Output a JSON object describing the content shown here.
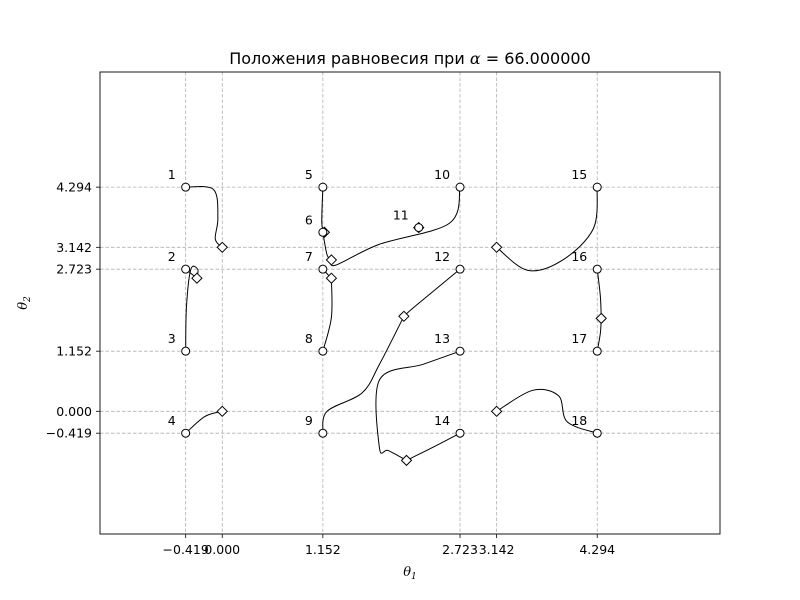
{
  "chart_data": {
    "type": "scatter",
    "title_prefix": "Положения равновесия при ",
    "title_symbol": "α",
    "title_suffix": " = 66.000000",
    "xlabel_main": "θ",
    "xlabel_sub": "1",
    "ylabel_main": "θ",
    "ylabel_sub": "2",
    "xlim": [
      -1.4,
      5.7
    ],
    "ylim": [
      -2.35,
      6.5
    ],
    "x_ticks": [
      {
        "value": -0.419,
        "label": "−0.419"
      },
      {
        "value": 0.0,
        "label": "0.000"
      },
      {
        "value": 1.152,
        "label": "1.152"
      },
      {
        "value": 2.723,
        "label": "2.723"
      },
      {
        "value": 3.142,
        "label": "3.142"
      },
      {
        "value": 4.294,
        "label": "4.294"
      }
    ],
    "y_ticks": [
      {
        "value": -0.419,
        "label": "−0.419"
      },
      {
        "value": 0.0,
        "label": "0.000"
      },
      {
        "value": 1.152,
        "label": "1.152"
      },
      {
        "value": 2.723,
        "label": "2.723"
      },
      {
        "value": 3.142,
        "label": "3.142"
      },
      {
        "value": 4.294,
        "label": "4.294"
      }
    ],
    "grid": true,
    "start_points": [
      {
        "label": "1",
        "x": -0.419,
        "y": 4.294
      },
      {
        "label": "2",
        "x": -0.419,
        "y": 2.723
      },
      {
        "label": "3",
        "x": -0.419,
        "y": 1.152
      },
      {
        "label": "4",
        "x": -0.419,
        "y": -0.419
      },
      {
        "label": "5",
        "x": 1.152,
        "y": 4.294
      },
      {
        "label": "6",
        "x": 1.152,
        "y": 3.43
      },
      {
        "label": "7",
        "x": 1.152,
        "y": 2.723
      },
      {
        "label": "8",
        "x": 1.152,
        "y": 1.152
      },
      {
        "label": "9",
        "x": 1.152,
        "y": -0.419
      },
      {
        "label": "10",
        "x": 2.723,
        "y": 4.294
      },
      {
        "label": "11",
        "x": 2.25,
        "y": 3.52
      },
      {
        "label": "12",
        "x": 2.723,
        "y": 2.723
      },
      {
        "label": "13",
        "x": 2.723,
        "y": 1.152
      },
      {
        "label": "14",
        "x": 2.723,
        "y": -0.419
      },
      {
        "label": "15",
        "x": 4.294,
        "y": 4.294
      },
      {
        "label": "16",
        "x": 4.294,
        "y": 2.723
      },
      {
        "label": "17",
        "x": 4.294,
        "y": 1.152
      },
      {
        "label": "18",
        "x": 4.294,
        "y": -0.419
      }
    ],
    "end_points": [
      {
        "x": 0.0,
        "y": 3.142
      },
      {
        "x": -0.29,
        "y": 2.55
      },
      {
        "x": 0.0,
        "y": 0.0
      },
      {
        "x": 1.17,
        "y": 3.43
      },
      {
        "x": 1.25,
        "y": 2.9
      },
      {
        "x": 1.25,
        "y": 2.55
      },
      {
        "x": 2.25,
        "y": 3.52
      },
      {
        "x": 2.08,
        "y": 1.82
      },
      {
        "x": 2.11,
        "y": -0.94
      },
      {
        "x": 3.142,
        "y": 3.142
      },
      {
        "x": 4.34,
        "y": 1.78
      },
      {
        "x": 3.142,
        "y": 0.0
      }
    ],
    "trajectories": [
      [
        [
          -0.419,
          4.294
        ],
        [
          -0.1,
          4.25
        ],
        [
          -0.05,
          3.7
        ],
        [
          -0.08,
          3.3
        ],
        [
          0.0,
          3.142
        ]
      ],
      [
        [
          -0.419,
          2.723
        ],
        [
          -0.29,
          2.55
        ]
      ],
      [
        [
          -0.419,
          1.152
        ],
        [
          -0.41,
          2.0
        ],
        [
          -0.36,
          2.72
        ],
        [
          -0.28,
          2.72
        ],
        [
          -0.29,
          2.55
        ]
      ],
      [
        [
          -0.419,
          -0.419
        ],
        [
          -0.2,
          -0.1
        ],
        [
          0.0,
          0.0
        ]
      ],
      [
        [
          1.152,
          4.294
        ],
        [
          1.14,
          3.6
        ],
        [
          1.17,
          3.43
        ]
      ],
      [
        [
          1.152,
          3.43
        ],
        [
          1.2,
          3.0
        ],
        [
          1.25,
          2.9
        ]
      ],
      [
        [
          1.152,
          2.723
        ],
        [
          1.22,
          2.6
        ],
        [
          1.25,
          2.55
        ]
      ],
      [
        [
          1.152,
          1.152
        ],
        [
          1.25,
          1.8
        ],
        [
          1.25,
          2.55
        ]
      ],
      [
        [
          1.152,
          -0.419
        ],
        [
          1.2,
          0.0
        ],
        [
          1.6,
          0.35
        ],
        [
          1.8,
          0.9
        ],
        [
          2.08,
          1.82
        ]
      ],
      [
        [
          2.723,
          4.294
        ],
        [
          2.6,
          3.6
        ],
        [
          1.8,
          3.2
        ],
        [
          1.3,
          2.8
        ],
        [
          1.25,
          2.9
        ]
      ],
      [
        [
          2.723,
          2.723
        ],
        [
          2.2,
          2.0
        ],
        [
          2.08,
          1.82
        ]
      ],
      [
        [
          2.723,
          1.152
        ],
        [
          2.3,
          0.9
        ],
        [
          1.8,
          0.6
        ],
        [
          1.8,
          -0.7
        ],
        [
          1.9,
          -0.75
        ],
        [
          2.11,
          -0.94
        ]
      ],
      [
        [
          2.723,
          -0.419
        ],
        [
          2.4,
          -0.7
        ],
        [
          2.11,
          -0.94
        ]
      ],
      [
        [
          4.294,
          4.294
        ],
        [
          4.25,
          3.5
        ],
        [
          3.9,
          2.9
        ],
        [
          3.5,
          2.7
        ],
        [
          3.142,
          3.142
        ]
      ],
      [
        [
          4.294,
          2.723
        ],
        [
          4.33,
          2.2
        ],
        [
          4.34,
          1.78
        ]
      ],
      [
        [
          4.294,
          1.152
        ],
        [
          4.33,
          1.5
        ],
        [
          4.34,
          1.78
        ]
      ],
      [
        [
          4.294,
          -0.419
        ],
        [
          3.95,
          -0.2
        ],
        [
          3.85,
          0.3
        ],
        [
          3.55,
          0.4
        ],
        [
          3.142,
          0.0
        ]
      ]
    ]
  }
}
